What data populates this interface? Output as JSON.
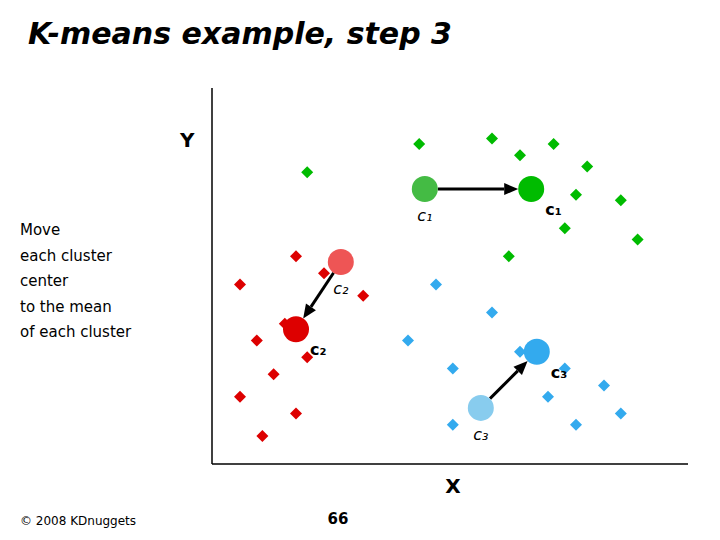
{
  "chart_data": {
    "type": "scatter",
    "title": "K-means example, step 3",
    "x_label": "X",
    "y_label": "Y",
    "xlim": [
      1.5,
      10.0
    ],
    "ylim": [
      3.8,
      10.5
    ],
    "tick_labels": false,
    "grid": false,
    "series": [
      {
        "color": "#00bb00",
        "marker": "diamond",
        "values": [
          [
            3.2,
            9.0
          ],
          [
            5.2,
            9.5
          ],
          [
            6.5,
            9.6
          ],
          [
            7.0,
            9.3
          ],
          [
            7.6,
            9.5
          ],
          [
            8.2,
            9.1
          ],
          [
            8.0,
            8.6
          ],
          [
            8.8,
            8.5
          ],
          [
            9.1,
            7.8
          ],
          [
            7.8,
            8.0
          ],
          [
            6.8,
            7.5
          ]
        ]
      },
      {
        "color": "#dd0000",
        "marker": "diamond",
        "values": [
          [
            3.0,
            7.5
          ],
          [
            2.0,
            7.0
          ],
          [
            3.5,
            7.2
          ],
          [
            4.2,
            6.8
          ],
          [
            2.8,
            6.3
          ],
          [
            2.3,
            6.0
          ],
          [
            3.2,
            5.7
          ],
          [
            2.6,
            5.4
          ],
          [
            2.0,
            5.0
          ],
          [
            3.0,
            4.7
          ],
          [
            2.4,
            4.3
          ]
        ]
      },
      {
        "color": "#33aaee",
        "marker": "diamond",
        "values": [
          [
            5.5,
            7.0
          ],
          [
            6.5,
            6.5
          ],
          [
            5.0,
            6.0
          ],
          [
            7.0,
            5.8
          ],
          [
            5.8,
            5.5
          ],
          [
            7.8,
            5.5
          ],
          [
            7.5,
            5.0
          ],
          [
            8.5,
            5.2
          ],
          [
            8.8,
            4.7
          ],
          [
            8.0,
            4.5
          ],
          [
            5.8,
            4.5
          ]
        ]
      }
    ],
    "centers": [
      {
        "label": "c₁",
        "old": [
          5.3,
          8.7
        ],
        "new": [
          7.2,
          8.7
        ],
        "color": "#00bb00",
        "old_color": "#44bb44"
      },
      {
        "label": "c₂",
        "old": [
          3.8,
          7.4
        ],
        "new": [
          3.0,
          6.2
        ],
        "color": "#dd0000",
        "old_color": "#ee5555"
      },
      {
        "label": "c₃",
        "old": [
          6.3,
          4.8
        ],
        "new": [
          7.3,
          5.8
        ],
        "color": "#33aaee",
        "old_color": "#88ccee"
      }
    ],
    "annotations": [
      "Move\neach cluster\ncenter\nto the mean\nof each cluster",
      "© 2008 KDnuggets",
      "66"
    ]
  }
}
